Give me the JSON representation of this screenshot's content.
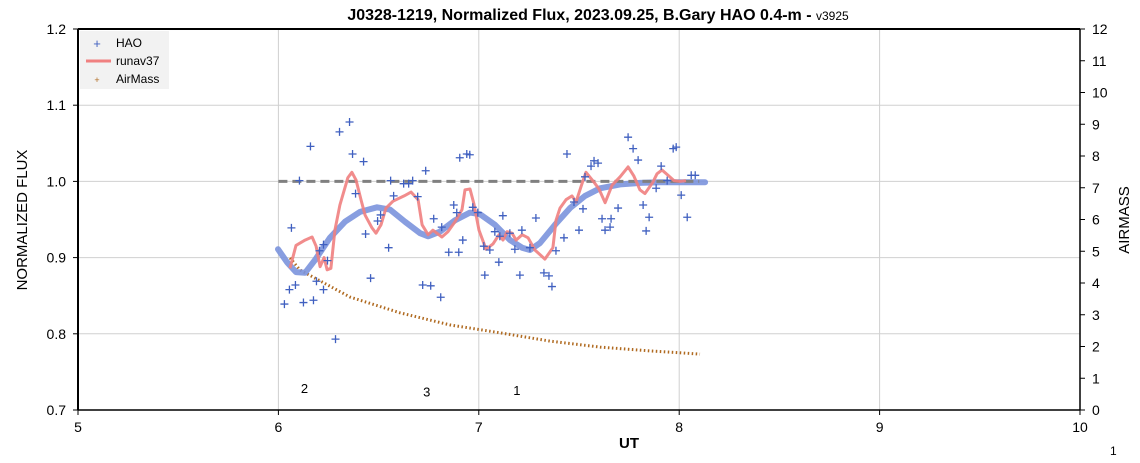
{
  "chart_data": {
    "type": "scatter",
    "title": "J0328-1219, Normalized Flux, 2023.09.25, B.Gary HAO 0.4-m - ",
    "title_version": "v3925",
    "xlabel": "UT",
    "ylabel": "NORMALIZED FLUX",
    "y2label": "AIRMASS",
    "xlim": [
      5,
      10
    ],
    "ylim": [
      0.7,
      1.2
    ],
    "y2lim": [
      0,
      12
    ],
    "xticks": [
      "5",
      "6",
      "7",
      "8",
      "9",
      "10"
    ],
    "yticks": [
      "0.7",
      "0.8",
      "0.9",
      "1.0",
      "1.1",
      "1.2"
    ],
    "y2ticks": [
      "0",
      "1",
      "2",
      "3",
      "4",
      "5",
      "6",
      "7",
      "8",
      "9",
      "10",
      "11",
      "12"
    ],
    "grid": true,
    "legend": {
      "placement": "top-left",
      "entries": [
        "HAO",
        "runav37",
        "AirMass"
      ]
    },
    "colors": {
      "hao": "#4060c0",
      "runav": "#f08080",
      "model": "#7b93dd",
      "airmass": "#b06a20",
      "reference": "#808080"
    },
    "series": [
      {
        "name": "HAO",
        "kind": "points",
        "x": [
          6.03,
          6.055,
          6.065,
          6.085,
          6.105,
          6.125,
          6.16,
          6.175,
          6.19,
          6.205,
          6.225,
          6.225,
          6.245,
          6.285,
          6.305,
          6.355,
          6.37,
          6.385,
          6.425,
          6.435,
          6.46,
          6.495,
          6.51,
          6.55,
          6.56,
          6.575,
          6.625,
          6.65,
          6.67,
          6.695,
          6.72,
          6.735,
          6.76,
          6.775,
          6.81,
          6.815,
          6.85,
          6.875,
          6.89,
          6.9,
          6.905,
          6.92,
          6.94,
          6.955,
          6.97,
          6.995,
          7.025,
          7.03,
          7.055,
          7.08,
          7.1,
          7.105,
          7.12,
          7.155,
          7.18,
          7.205,
          7.215,
          7.255,
          7.285,
          7.325,
          7.35,
          7.365,
          7.385,
          7.425,
          7.44,
          7.475,
          7.5,
          7.52,
          7.53,
          7.56,
          7.575,
          7.595,
          7.615,
          7.63,
          7.655,
          7.66,
          7.695,
          7.745,
          7.77,
          7.795,
          7.82,
          7.835,
          7.85,
          7.885,
          7.91,
          7.94,
          7.97,
          7.985,
          8.01,
          8.04,
          8.06,
          8.08
        ],
        "y": [
          0.839,
          0.858,
          0.939,
          0.864,
          1.001,
          0.841,
          1.046,
          0.844,
          0.869,
          0.909,
          0.917,
          0.858,
          0.896,
          0.793,
          1.065,
          1.078,
          1.036,
          0.984,
          1.026,
          0.931,
          0.873,
          0.948,
          0.956,
          0.913,
          1.001,
          0.981,
          0.997,
          0.997,
          1.001,
          0.98,
          0.864,
          1.014,
          0.863,
          0.951,
          0.848,
          0.94,
          0.907,
          0.969,
          0.959,
          0.907,
          1.031,
          0.923,
          1.036,
          1.035,
          0.966,
          0.959,
          0.915,
          0.877,
          0.91,
          0.934,
          0.894,
          0.928,
          0.955,
          0.932,
          0.911,
          0.877,
          0.936,
          0.913,
          0.952,
          0.88,
          0.876,
          0.862,
          0.909,
          0.926,
          1.036,
          0.973,
          0.936,
          0.964,
          1.006,
          1.02,
          1.027,
          1.024,
          0.951,
          0.936,
          0.94,
          0.951,
          0.965,
          1.058,
          1.043,
          1.028,
          0.969,
          0.935,
          0.953,
          0.991,
          1.02,
          1.001,
          1.043,
          1.045,
          0.982,
          0.953,
          1.008,
          1.008
        ]
      },
      {
        "name": "runav37",
        "kind": "line",
        "x": [
          6.058,
          6.088,
          6.133,
          6.168,
          6.188,
          6.208,
          6.228,
          6.243,
          6.262,
          6.282,
          6.307,
          6.347,
          6.367,
          6.387,
          6.412,
          6.432,
          6.467,
          6.487,
          6.512,
          6.537,
          6.572,
          6.627,
          6.662,
          6.697,
          6.717,
          6.747,
          6.771,
          6.816,
          6.846,
          6.881,
          6.916,
          6.931,
          6.956,
          6.976,
          7.001,
          7.036,
          7.071,
          7.101,
          7.121,
          7.141,
          7.166,
          7.186,
          7.216,
          7.246,
          7.28,
          7.33,
          7.37,
          7.385,
          7.405,
          7.435,
          7.465,
          7.485,
          7.515,
          7.535,
          7.575,
          7.6,
          7.63,
          7.665,
          7.705,
          7.745,
          7.774,
          7.804,
          7.829,
          7.869,
          7.889,
          7.914,
          7.944,
          7.974,
          8.004,
          8.034
        ],
        "y": [
          0.886,
          0.916,
          0.923,
          0.927,
          0.915,
          0.888,
          0.9,
          0.884,
          0.886,
          0.936,
          0.969,
          1.005,
          1.012,
          1.002,
          0.976,
          0.956,
          0.939,
          0.932,
          0.943,
          0.965,
          0.974,
          0.981,
          0.986,
          0.976,
          0.943,
          0.93,
          0.936,
          0.927,
          0.934,
          0.947,
          0.963,
          0.989,
          0.99,
          0.97,
          0.936,
          0.911,
          0.918,
          0.93,
          0.923,
          0.934,
          0.932,
          0.923,
          0.93,
          0.926,
          0.91,
          0.898,
          0.913,
          0.949,
          0.965,
          0.976,
          0.981,
          0.973,
          0.997,
          1.012,
          0.999,
          0.99,
          0.972,
          0.995,
          1.006,
          1.019,
          1.007,
          0.989,
          0.984,
          0.999,
          1.01,
          1.015,
          1.008,
          1.001,
          1.0,
          1.001
        ]
      },
      {
        "name": "model",
        "kind": "line",
        "x": [
          5.998,
          6.043,
          6.088,
          6.133,
          6.183,
          6.257,
          6.332,
          6.407,
          6.492,
          6.557,
          6.632,
          6.707,
          6.747,
          6.806,
          6.881,
          6.956,
          7.006,
          7.081,
          7.156,
          7.216,
          7.255,
          7.305,
          7.38,
          7.455,
          7.53,
          7.605,
          7.705,
          7.804,
          7.904,
          8.129
        ],
        "y": [
          0.911,
          0.894,
          0.881,
          0.88,
          0.897,
          0.926,
          0.947,
          0.96,
          0.966,
          0.963,
          0.947,
          0.932,
          0.928,
          0.934,
          0.949,
          0.959,
          0.957,
          0.943,
          0.923,
          0.913,
          0.91,
          0.919,
          0.943,
          0.965,
          0.981,
          0.991,
          0.996,
          0.998,
          0.999,
          0.999
        ]
      },
      {
        "name": "reference",
        "kind": "dashed",
        "x": [
          6.0,
          8.1
        ],
        "y": [
          1.0,
          1.0
        ]
      },
      {
        "name": "AirMass",
        "kind": "dots",
        "axis": "y2",
        "x": [
          6.058,
          6.108,
          6.357,
          6.607,
          6.856,
          7.106,
          7.355,
          7.605,
          7.854,
          8.104
        ],
        "y": [
          4.79,
          4.41,
          3.56,
          3.06,
          2.68,
          2.43,
          2.17,
          1.98,
          1.86,
          1.76
        ]
      }
    ],
    "annotations": [
      {
        "text": "2",
        "x": 6.13,
        "y": 0.722
      },
      {
        "text": "3",
        "x": 6.74,
        "y": 0.718
      },
      {
        "text": "1",
        "x": 7.19,
        "y": 0.72
      }
    ],
    "page_number": "1"
  }
}
